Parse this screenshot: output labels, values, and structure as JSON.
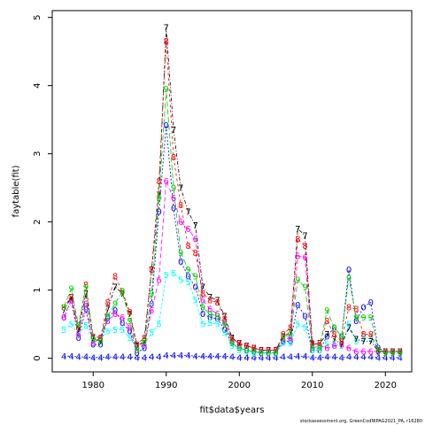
{
  "chart_data": {
    "type": "line",
    "xlabel": "fit$data$years",
    "ylabel": "faytable(fit)",
    "xlim": [
      1974.4,
      2023.6
    ],
    "ylim": [
      -0.2,
      5.1
    ],
    "xticks": [
      "1980",
      "1990",
      "2000",
      "2010",
      "2020"
    ],
    "yticks": [
      "0",
      "1",
      "2",
      "3",
      "4",
      "5"
    ],
    "footer": "stockassessment.org, GreenCodNIPAG2021_PA, r16280",
    "x": [
      1976,
      1977,
      1978,
      1979,
      1980,
      1981,
      1982,
      1983,
      1984,
      1985,
      1986,
      1987,
      1988,
      1989,
      1990,
      1991,
      1992,
      1993,
      1994,
      1995,
      1996,
      1997,
      1998,
      1999,
      2000,
      2001,
      2002,
      2003,
      2004,
      2005,
      2006,
      2007,
      2008,
      2009,
      2010,
      2011,
      2012,
      2013,
      2014,
      2015,
      2016,
      2017,
      2018,
      2019,
      2020,
      2021,
      2022
    ],
    "series": [
      {
        "name": "0",
        "color": "#0000ff",
        "dash": "2,2",
        "values": [
          0.6,
          0.85,
          0.3,
          0.72,
          0.2,
          0.2,
          0.6,
          0.7,
          0.52,
          0.4,
          0.08,
          0.15,
          0.8,
          2.15,
          3.42,
          2.2,
          1.42,
          1.2,
          1.05,
          0.65,
          0.6,
          0.58,
          0.42,
          0.22,
          0.15,
          0.12,
          0.1,
          0.08,
          0.08,
          0.08,
          0.25,
          0.25,
          0.78,
          0.62,
          0.12,
          0.12,
          0.32,
          0.45,
          0.32,
          1.3,
          0.55,
          0.75,
          0.82,
          0.15,
          0.1,
          0.1,
          0.1
        ]
      },
      {
        "name": "4",
        "color": "#0000ff",
        "dash": "2,2",
        "values": [
          0.03,
          0.03,
          0.02,
          0.02,
          0.01,
          0.01,
          0.02,
          0.02,
          0.02,
          0.02,
          0.01,
          0.01,
          0.02,
          0.02,
          0.04,
          0.04,
          0.04,
          0.04,
          0.03,
          0.03,
          0.03,
          0.03,
          0.03,
          0.02,
          0.01,
          0.01,
          0.01,
          0.01,
          0.01,
          0.01,
          0.02,
          0.02,
          0.03,
          0.03,
          0.01,
          0.01,
          0.02,
          0.02,
          0.01,
          0.02,
          0.02,
          0.02,
          0.02,
          0.01,
          0.01,
          0.01,
          0.01
        ]
      },
      {
        "name": "5",
        "color": "#00ffff",
        "dash": "3,2",
        "values": [
          0.42,
          0.5,
          0.35,
          0.48,
          0.25,
          0.3,
          0.4,
          0.42,
          0.42,
          0.3,
          0.15,
          0.2,
          0.38,
          0.5,
          1.22,
          1.25,
          1.15,
          1.12,
          0.85,
          0.5,
          0.52,
          0.5,
          0.38,
          0.18,
          0.12,
          0.1,
          0.08,
          0.08,
          0.08,
          0.08,
          0.22,
          0.22,
          0.5,
          0.45,
          0.12,
          0.12,
          0.2,
          0.2,
          0.18,
          0.5,
          0.25,
          0.3,
          0.3,
          0.1,
          0.08,
          0.08,
          0.08
        ]
      },
      {
        "name": "6",
        "color": "#ff00ff",
        "dash": "5,3",
        "values": [
          0.6,
          0.85,
          0.35,
          0.8,
          0.22,
          0.3,
          0.55,
          0.65,
          0.6,
          0.45,
          0.12,
          0.2,
          0.7,
          1.15,
          2.6,
          2.35,
          2.0,
          1.9,
          1.75,
          0.85,
          0.72,
          0.65,
          0.52,
          0.25,
          0.2,
          0.18,
          0.15,
          0.12,
          0.12,
          0.12,
          0.28,
          0.3,
          1.5,
          1.48,
          0.15,
          0.18,
          0.15,
          0.18,
          0.2,
          0.15,
          0.1,
          0.1,
          0.1,
          0.1,
          0.1,
          0.1,
          0.1
        ]
      },
      {
        "name": "7",
        "color": "#000000",
        "dash": "4,2,1,2",
        "values": [
          0.7,
          0.9,
          0.42,
          0.95,
          0.3,
          0.25,
          0.72,
          1.05,
          0.95,
          0.65,
          0.18,
          0.25,
          1.3,
          2.4,
          4.85,
          3.35,
          2.5,
          2.15,
          1.95,
          1.05,
          0.9,
          0.85,
          0.62,
          0.3,
          0.22,
          0.18,
          0.15,
          0.12,
          0.12,
          0.12,
          0.32,
          0.38,
          1.9,
          1.8,
          0.2,
          0.22,
          0.35,
          0.28,
          0.2,
          0.45,
          0.28,
          0.25,
          0.25,
          0.1,
          0.1,
          0.1,
          0.1
        ]
      },
      {
        "name": "8",
        "color": "#ff0000",
        "dash": "3,3",
        "values": [
          0.75,
          0.9,
          0.45,
          1.08,
          0.32,
          0.3,
          0.82,
          1.2,
          0.98,
          0.68,
          0.2,
          0.3,
          1.3,
          2.6,
          4.65,
          2.95,
          2.25,
          1.65,
          1.55,
          0.95,
          0.85,
          0.82,
          0.58,
          0.28,
          0.22,
          0.18,
          0.15,
          0.12,
          0.12,
          0.12,
          0.35,
          0.45,
          1.75,
          1.65,
          0.22,
          0.22,
          0.55,
          0.35,
          0.25,
          0.75,
          0.72,
          0.35,
          0.35,
          0.12,
          0.1,
          0.1,
          0.1
        ]
      },
      {
        "name": "9",
        "color": "#00cd00",
        "dash": "6,3",
        "values": [
          0.75,
          1.02,
          0.48,
          1.05,
          0.28,
          0.25,
          0.62,
          0.8,
          0.98,
          0.55,
          0.12,
          0.25,
          0.95,
          2.35,
          3.95,
          2.5,
          1.55,
          1.3,
          1.2,
          0.75,
          0.65,
          0.62,
          0.5,
          0.22,
          0.15,
          0.12,
          0.1,
          0.08,
          0.08,
          0.08,
          0.3,
          0.35,
          1.15,
          1.05,
          0.15,
          0.15,
          0.7,
          0.45,
          0.32,
          1.18,
          0.6,
          0.6,
          0.6,
          0.12,
          0.08,
          0.08,
          0.08
        ]
      }
    ]
  }
}
